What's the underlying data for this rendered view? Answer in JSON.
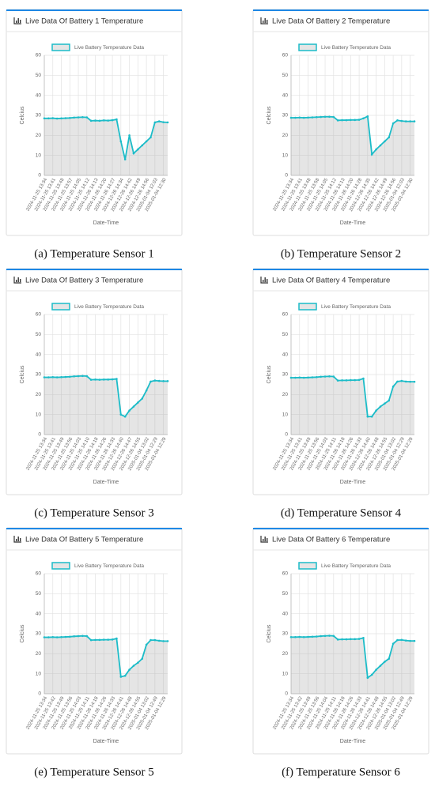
{
  "chart_data": [
    {
      "type": "line",
      "title": "Live Data Of Battery 1 Temperature",
      "caption": "(a) Temperature Sensor 1",
      "ylabel": "Celcius",
      "xlabel": "Date-Time",
      "ylim": [
        0,
        60
      ],
      "yticks": [
        0,
        10,
        20,
        30,
        40,
        50,
        60
      ],
      "grid": true,
      "categories": [
        "2024-11-25 13:34",
        null,
        "2024-11-25 13:41",
        null,
        "2024-11-25 13:48",
        null,
        "2024-11-25 13:57",
        null,
        "2024-11-25 14:05",
        null,
        "2024-11-25 14:12",
        null,
        "2024-11-26 14:13",
        null,
        "2024-11-26 14:20",
        null,
        "2024-11-26 14:27",
        null,
        "2024-12-26 14:34",
        null,
        "2024-12-26 14:42",
        null,
        "2024-12-26 14:49",
        null,
        "2024-12-26 14:56",
        null,
        "2025-01-04 12:03",
        null,
        "2025-01-04 12:30",
        null
      ],
      "series": [
        {
          "name": "Live Battery Temperature Data",
          "color": "#1cbcc8",
          "values": [
            28.5,
            28.5,
            28.6,
            28.4,
            28.5,
            28.6,
            28.7,
            28.9,
            29,
            29.1,
            29,
            27.3,
            27.4,
            27.3,
            27.5,
            27.4,
            27.6,
            28,
            17,
            8,
            20,
            11,
            13,
            15,
            17,
            19,
            26.5,
            27,
            26.6,
            26.5
          ]
        }
      ]
    },
    {
      "type": "line",
      "title": "Live Data Of Battery 2 Temperature",
      "caption": "(b) Temperature Sensor 2",
      "ylabel": "Celcius",
      "xlabel": "Date-Time",
      "ylim": [
        0,
        60
      ],
      "yticks": [
        0,
        10,
        20,
        30,
        40,
        50,
        60
      ],
      "grid": true,
      "categories": [
        "2024-11-25 13:34",
        null,
        "2024-11-25 13:41",
        null,
        "2024-11-25 13:48",
        null,
        "2024-11-25 13:58",
        null,
        "2024-11-25 14:05",
        null,
        "2024-11-25 14:12",
        null,
        "2024-11-26 14:13",
        null,
        "2024-11-26 14:20",
        null,
        "2024-11-26 14:28",
        null,
        "2024-12-26 14:35",
        null,
        "2024-12-26 14:42",
        null,
        "2024-12-26 14:49",
        null,
        "2024-12-26 14:56",
        null,
        "2025-01-04 12:03",
        null,
        "2025-01-04 12:30",
        null
      ],
      "series": [
        {
          "name": "Live Battery Temperature Data",
          "color": "#1cbcc8",
          "values": [
            28.8,
            28.8,
            28.9,
            28.8,
            28.9,
            29,
            29.1,
            29.2,
            29.3,
            29.3,
            29.2,
            27.5,
            27.6,
            27.6,
            27.7,
            27.7,
            27.8,
            28.5,
            29.5,
            10.5,
            13,
            15,
            17,
            19,
            26,
            27.5,
            27.2,
            27,
            27,
            27
          ]
        }
      ]
    },
    {
      "type": "line",
      "title": "Live Data Of Battery 3 Temperature",
      "caption": "(c) Temperature Sensor 3",
      "ylabel": "Celcius",
      "xlabel": "Date-Time",
      "ylim": [
        0,
        60
      ],
      "yticks": [
        0,
        10,
        20,
        30,
        40,
        50,
        60
      ],
      "grid": true,
      "categories": [
        "2024-11-25 13:34",
        null,
        "2024-11-25 13:41",
        null,
        "2024-11-25 13:49",
        null,
        "2024-11-25 13:56",
        null,
        "2024-11-25 14:03",
        null,
        "2024-11-25 14:10",
        null,
        "2024-11-26 14:18",
        null,
        "2024-11-26 14:26",
        null,
        "2024-11-26 14:33",
        null,
        "2024-12-26 14:40",
        null,
        "2024-12-26 14:47",
        null,
        "2024-12-26 14:55",
        null,
        "2025-01-04 13:02",
        null,
        "2025-01-04 12:29",
        null,
        "2025-01-04 12:29",
        null
      ],
      "series": [
        {
          "name": "Live Battery Temperature Data",
          "color": "#1cbcc8",
          "values": [
            28.6,
            28.6,
            28.7,
            28.6,
            28.7,
            28.8,
            28.9,
            29.1,
            29.2,
            29.3,
            29.2,
            27.4,
            27.5,
            27.4,
            27.5,
            27.5,
            27.6,
            27.8,
            10,
            9,
            12,
            14,
            16,
            18,
            22,
            26.5,
            27,
            26.8,
            26.7,
            26.7
          ]
        }
      ]
    },
    {
      "type": "line",
      "title": "Live Data Of Battery 4 Temperature",
      "caption": "(d) Temperature Sensor 4",
      "ylabel": "Celcius",
      "xlabel": "Date-Time",
      "ylim": [
        0,
        60
      ],
      "yticks": [
        0,
        10,
        20,
        30,
        40,
        50,
        60
      ],
      "grid": true,
      "categories": [
        "2024-11-25 13:34",
        null,
        "2024-11-25 13:41",
        null,
        "2024-11-25 13:49",
        null,
        "2024-11-25 13:56",
        null,
        "2024-11-25 14:03",
        null,
        "2024-11-25 14:11",
        null,
        "2024-11-26 14:18",
        null,
        "2024-11-26 14:26",
        null,
        "2024-11-26 14:33",
        null,
        "2024-12-26 14:40",
        null,
        "2024-12-26 14:48",
        null,
        "2024-12-26 14:55",
        null,
        "2025-01-04 13:02",
        null,
        "2025-01-04 12:29",
        null,
        "2025-01-04 12:29",
        null
      ],
      "series": [
        {
          "name": "Live Battery Temperature Data",
          "color": "#1cbcc8",
          "values": [
            28.4,
            28.4,
            28.5,
            28.4,
            28.5,
            28.6,
            28.7,
            28.9,
            29,
            29.1,
            29,
            27,
            27.1,
            27.1,
            27.2,
            27.2,
            27.3,
            28,
            9,
            9,
            12,
            14,
            15.5,
            17,
            24,
            26.5,
            26.8,
            26.5,
            26.4,
            26.4
          ]
        }
      ]
    },
    {
      "type": "line",
      "title": "Live Data Of Battery 5 Temperature",
      "caption": "(e) Temperature Sensor 5",
      "ylabel": "Celcius",
      "xlabel": "Date-Time",
      "ylim": [
        0,
        60
      ],
      "yticks": [
        0,
        10,
        20,
        30,
        40,
        50,
        60
      ],
      "grid": true,
      "categories": [
        "2024-11-25 13:34",
        null,
        "2024-11-25 13:42",
        null,
        "2024-11-25 13:49",
        null,
        "2024-11-25 13:56",
        null,
        "2024-11-25 14:03",
        null,
        "2024-11-25 14:11",
        null,
        "2024-11-26 14:18",
        null,
        "2024-11-26 14:26",
        null,
        "2024-11-26 14:33",
        null,
        "2024-12-26 14:41",
        null,
        "2024-12-26 14:48",
        null,
        "2024-12-26 14:55",
        null,
        "2025-01-04 13:02",
        null,
        "2025-01-04 12:49",
        null,
        "2025-01-04 12:29",
        null
      ],
      "series": [
        {
          "name": "Live Battery Temperature Data",
          "color": "#1cbcc8",
          "values": [
            28.2,
            28.2,
            28.3,
            28.2,
            28.3,
            28.4,
            28.5,
            28.7,
            28.8,
            28.9,
            28.8,
            26.8,
            26.9,
            26.9,
            27,
            27,
            27.1,
            27.6,
            8.5,
            9,
            12,
            14,
            15.5,
            17.5,
            24.5,
            26.8,
            26.8,
            26.5,
            26.3,
            26.3
          ]
        }
      ]
    },
    {
      "type": "line",
      "title": "Live Data Of Battery 6 Temperature",
      "caption": "(f) Temperature Sensor 6",
      "ylabel": "Celcius",
      "xlabel": "Date-Time",
      "ylim": [
        0,
        60
      ],
      "yticks": [
        0,
        10,
        20,
        30,
        40,
        50,
        60
      ],
      "grid": true,
      "categories": [
        "2024-11-25 13:34",
        null,
        "2024-11-25 13:42",
        null,
        "2024-11-25 13:49",
        null,
        "2024-11-25 13:56",
        null,
        "2024-11-25 14:04",
        null,
        "2024-11-25 14:11",
        null,
        "2024-11-26 14:18",
        null,
        "2024-11-26 14:26",
        null,
        "2024-11-26 14:33",
        null,
        "2024-12-26 14:41",
        null,
        "2024-12-26 14:48",
        null,
        "2024-12-26 14:55",
        null,
        "2025-01-04 13:02",
        null,
        "2025-01-04 12:49",
        null,
        "2025-01-04 12:29",
        null
      ],
      "series": [
        {
          "name": "Live Battery Temperature Data",
          "color": "#1cbcc8",
          "values": [
            28.3,
            28.3,
            28.4,
            28.3,
            28.4,
            28.5,
            28.6,
            28.8,
            28.9,
            29,
            28.9,
            27.1,
            27.2,
            27.2,
            27.3,
            27.3,
            27.4,
            27.9,
            8,
            9.5,
            12,
            14,
            16,
            17.5,
            25,
            26.8,
            26.9,
            26.6,
            26.4,
            26.4
          ]
        }
      ]
    }
  ]
}
